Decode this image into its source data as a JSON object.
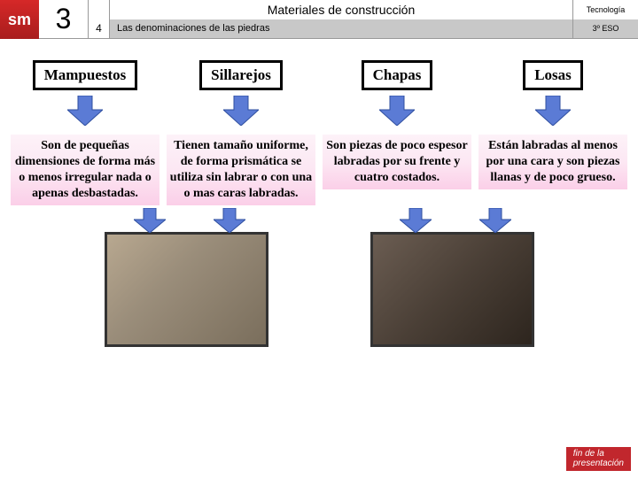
{
  "logo": "sm",
  "chapter": "3",
  "section": "4",
  "title": "Materiales de construcción",
  "subtitle": "Las denominaciones de las piedras",
  "tech": "Tecnología",
  "grade": "3º ESO",
  "columns": [
    {
      "label": "Mampuestos",
      "desc": "Son de pequeñas dimensiones de forma más o menos irregular nada o apenas desbastadas."
    },
    {
      "label": "Sillarejos",
      "desc": "Tienen tamaño uniforme, de forma prismática se utiliza sin labrar o con una o mas caras labradas."
    },
    {
      "label": "Chapas",
      "desc": "Son piezas de poco espesor labradas por su frente y cuatro costados."
    },
    {
      "label": "Losas",
      "desc": "Están labradas al menos por una cara y son piezas llanas y de poco grueso."
    }
  ],
  "arrow_fill": "#5b7bd5",
  "arrow_stroke": "#2f4f9f",
  "footer": "fin de la\npresentación"
}
